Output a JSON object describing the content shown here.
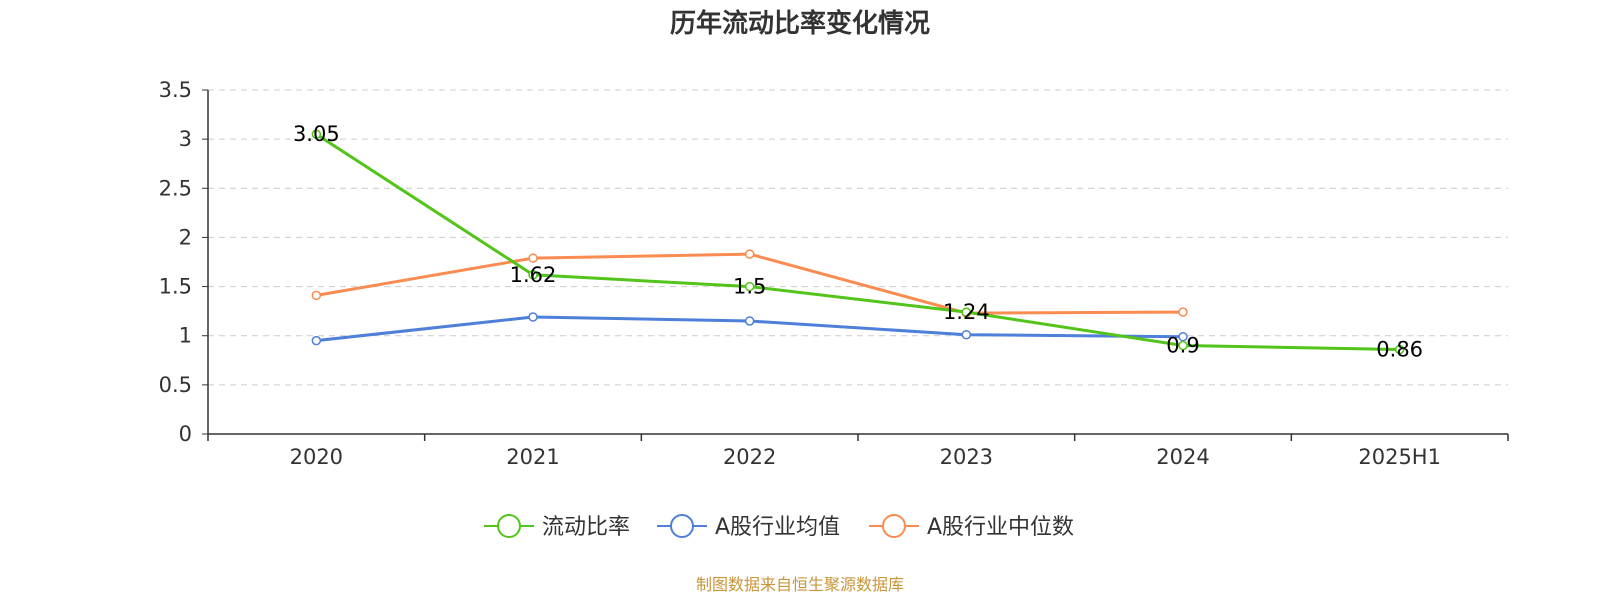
{
  "chart_data": {
    "type": "line",
    "title": "历年流动比率变化情况",
    "categories": [
      "2020",
      "2021",
      "2022",
      "2023",
      "2024",
      "2025H1"
    ],
    "ylim": [
      0,
      3.5
    ],
    "yticks": [
      "0",
      "0.5",
      "1",
      "1.5",
      "2",
      "2.5",
      "3",
      "3.5"
    ],
    "grid": true,
    "legend_position": "bottom",
    "series": [
      {
        "name": "流动比率",
        "color": "#52c41a",
        "values": [
          3.05,
          1.62,
          1.5,
          1.24,
          0.9,
          0.86
        ],
        "labels": [
          "3.05",
          "1.62",
          "1.5",
          "1.24",
          "0.9",
          "0.86"
        ]
      },
      {
        "name": "A股行业均值",
        "color": "#4e7fd9",
        "values": [
          0.95,
          1.19,
          1.15,
          1.01,
          0.99,
          null
        ]
      },
      {
        "name": "A股行业中位数",
        "color": "#fa8c52",
        "values": [
          1.41,
          1.79,
          1.83,
          1.23,
          1.24,
          null
        ]
      }
    ],
    "source": "制图数据来自恒生聚源数据库"
  }
}
